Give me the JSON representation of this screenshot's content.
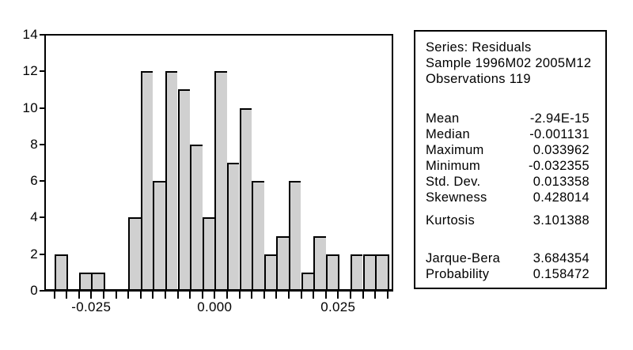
{
  "figure": {
    "background": "#ffffff",
    "bar_fill": "#d0d0d0",
    "bar_stroke": "#000000",
    "axis_color": "#000000"
  },
  "chart_data": {
    "type": "bar",
    "subtype": "histogram",
    "title": "",
    "xlabel": "",
    "ylabel": "",
    "series_name": "Residuals",
    "bin_start": -0.0325,
    "bin_width": 0.0025,
    "values": [
      2,
      0,
      1,
      1,
      0,
      0,
      4,
      12,
      6,
      12,
      11,
      8,
      4,
      12,
      7,
      10,
      6,
      2,
      3,
      6,
      1,
      3,
      2,
      0,
      2,
      2,
      2
    ],
    "ylim": [
      0,
      14
    ],
    "xlim": [
      -0.0325,
      0.035
    ],
    "ytick_labels": [
      "0",
      "2",
      "4",
      "6",
      "8",
      "10",
      "12",
      "14"
    ],
    "ytick_values": [
      0,
      2,
      4,
      6,
      8,
      10,
      12,
      14
    ],
    "xticks": [
      {
        "label": "-0.025",
        "value": -0.025
      },
      {
        "label": "0.000",
        "value": 0.0
      },
      {
        "label": "0.025",
        "value": 0.025
      }
    ],
    "grid": false,
    "legend": "none"
  },
  "stats_panel": {
    "header_lines": [
      "Series: Residuals",
      "Sample 1996M02 2005M12",
      "Observations 119"
    ],
    "rows": [
      {
        "label": "Mean",
        "value": "-2.94E-15"
      },
      {
        "label": "Median",
        "value": "-0.001131"
      },
      {
        "label": "Maximum",
        "value": "0.033962"
      },
      {
        "label": "Minimum",
        "value": "-0.032355"
      },
      {
        "label": "Std. Dev.",
        "value": "0.013358"
      },
      {
        "label": "Skewness",
        "value": "0.428014"
      },
      {
        "label": "Kurtosis",
        "value": "3.101388"
      }
    ],
    "test_rows": [
      {
        "label": "Jarque-Bera",
        "value": "3.684354"
      },
      {
        "label": "Probability",
        "value": "0.158472"
      }
    ]
  }
}
